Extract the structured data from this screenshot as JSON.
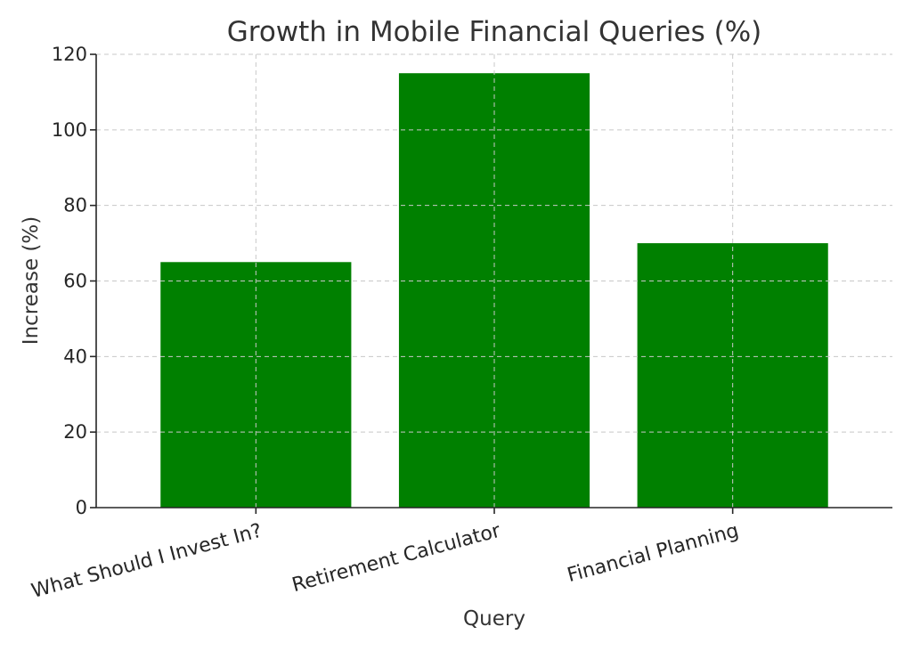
{
  "chart_data": {
    "type": "bar",
    "title": "Growth in Mobile Financial Queries (%)",
    "xlabel": "Query",
    "ylabel": "Increase (%)",
    "categories": [
      "What Should I Invest In?",
      "Retirement Calculator",
      "Financial Planning"
    ],
    "values": [
      65,
      115,
      70
    ],
    "ylim": [
      0,
      120
    ],
    "yticks": [
      0,
      20,
      40,
      60,
      80,
      100,
      120
    ],
    "grid": true,
    "legend": "none",
    "bar_color": "#008000"
  }
}
